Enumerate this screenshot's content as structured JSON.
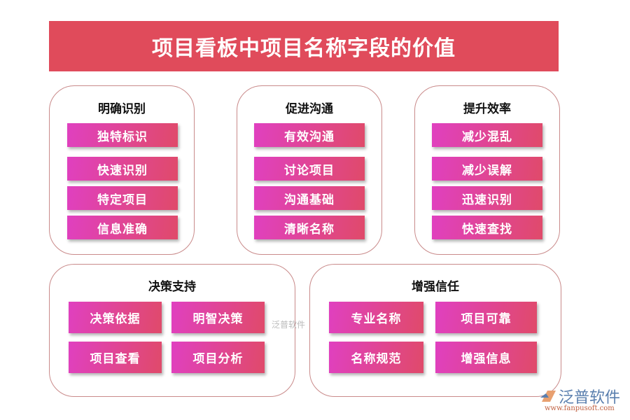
{
  "title": "项目看板中项目名称字段的价值",
  "groups": [
    {
      "title": "明确识别",
      "items": [
        "独特标识",
        "快速识别",
        "特定项目",
        "信息准确"
      ]
    },
    {
      "title": "促进沟通",
      "items": [
        "有效沟通",
        "讨论项目",
        "沟通基础",
        "清晰名称"
      ]
    },
    {
      "title": "提升效率",
      "items": [
        "减少混乱",
        "减少误解",
        "迅速识别",
        "快速查找"
      ]
    },
    {
      "title": "决策支持",
      "items": [
        "决策依据",
        "明智决策",
        "项目查看",
        "项目分析"
      ]
    },
    {
      "title": "增强信任",
      "items": [
        "专业名称",
        "项目可靠",
        "名称规范",
        "增强信息"
      ]
    }
  ],
  "watermark": "泛普软件",
  "logo": {
    "name": "泛普软件",
    "url": "www.fanpusoft.com"
  },
  "colors": {
    "title_bg": "#e04b5b",
    "button_start": "#e040c0",
    "button_end": "#e04a6a",
    "border": "#c98a8a"
  }
}
